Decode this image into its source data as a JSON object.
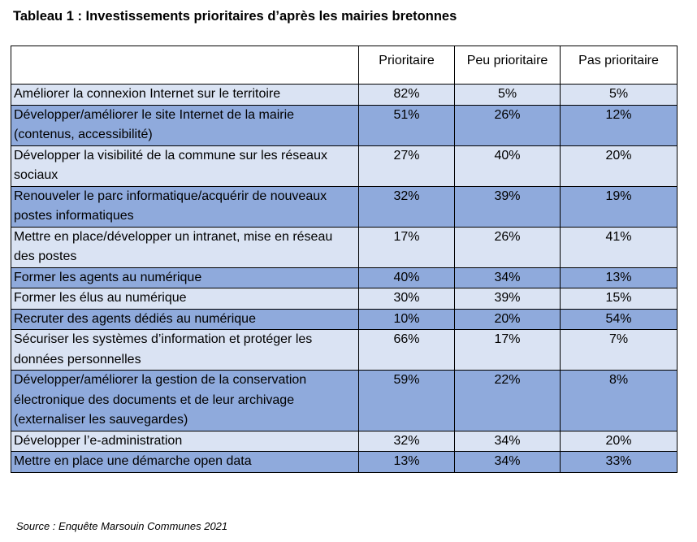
{
  "title": "Tableau 1 : Investissements prioritaires d’après les mairies bretonnes",
  "headers": [
    "",
    "Prioritaire",
    "Peu prioritaire",
    "Pas prioritaire"
  ],
  "rows": [
    {
      "label": "Améliorer la connexion Internet sur le territoire",
      "values": [
        "82%",
        "5%",
        "5%"
      ]
    },
    {
      "label": "Développer/améliorer le site Internet de la mairie (contenus, accessibilité)",
      "values": [
        "51%",
        "26%",
        "12%"
      ]
    },
    {
      "label": "Développer la visibilité de la commune sur les réseaux sociaux",
      "values": [
        "27%",
        "40%",
        "20%"
      ]
    },
    {
      "label": "Renouveler le parc informatique/acquérir de nouveaux postes informatiques",
      "values": [
        "32%",
        "39%",
        "19%"
      ]
    },
    {
      "label": "Mettre en place/développer un intranet, mise en réseau des postes",
      "values": [
        "17%",
        "26%",
        "41%"
      ]
    },
    {
      "label": "Former les agents au numérique",
      "values": [
        "40%",
        "34%",
        "13%"
      ]
    },
    {
      "label": "Former les élus au numérique",
      "values": [
        "30%",
        "39%",
        "15%"
      ]
    },
    {
      "label": "Recruter des agents dédiés au numérique",
      "values": [
        "10%",
        "20%",
        "54%"
      ]
    },
    {
      "label": "Sécuriser les systèmes d’information et protéger les données personnelles",
      "values": [
        "66%",
        "17%",
        "7%"
      ]
    },
    {
      "label": "Développer/améliorer la gestion de la conservation électronique des documents et de leur archivage (externaliser les sauvegardes)",
      "values": [
        "59%",
        "22%",
        "8%"
      ]
    },
    {
      "label": "Développer l’e-administration",
      "values": [
        "32%",
        "34%",
        "20%"
      ]
    },
    {
      "label": "Mettre en place une démarche open data",
      "values": [
        "13%",
        "34%",
        "33%"
      ]
    }
  ],
  "source": "Source : Enquête Marsouin Communes 2021",
  "colors": {
    "row_light": "#dae3f3",
    "row_dark": "#8faadc",
    "header": "#ffffff",
    "border": "#000000"
  }
}
